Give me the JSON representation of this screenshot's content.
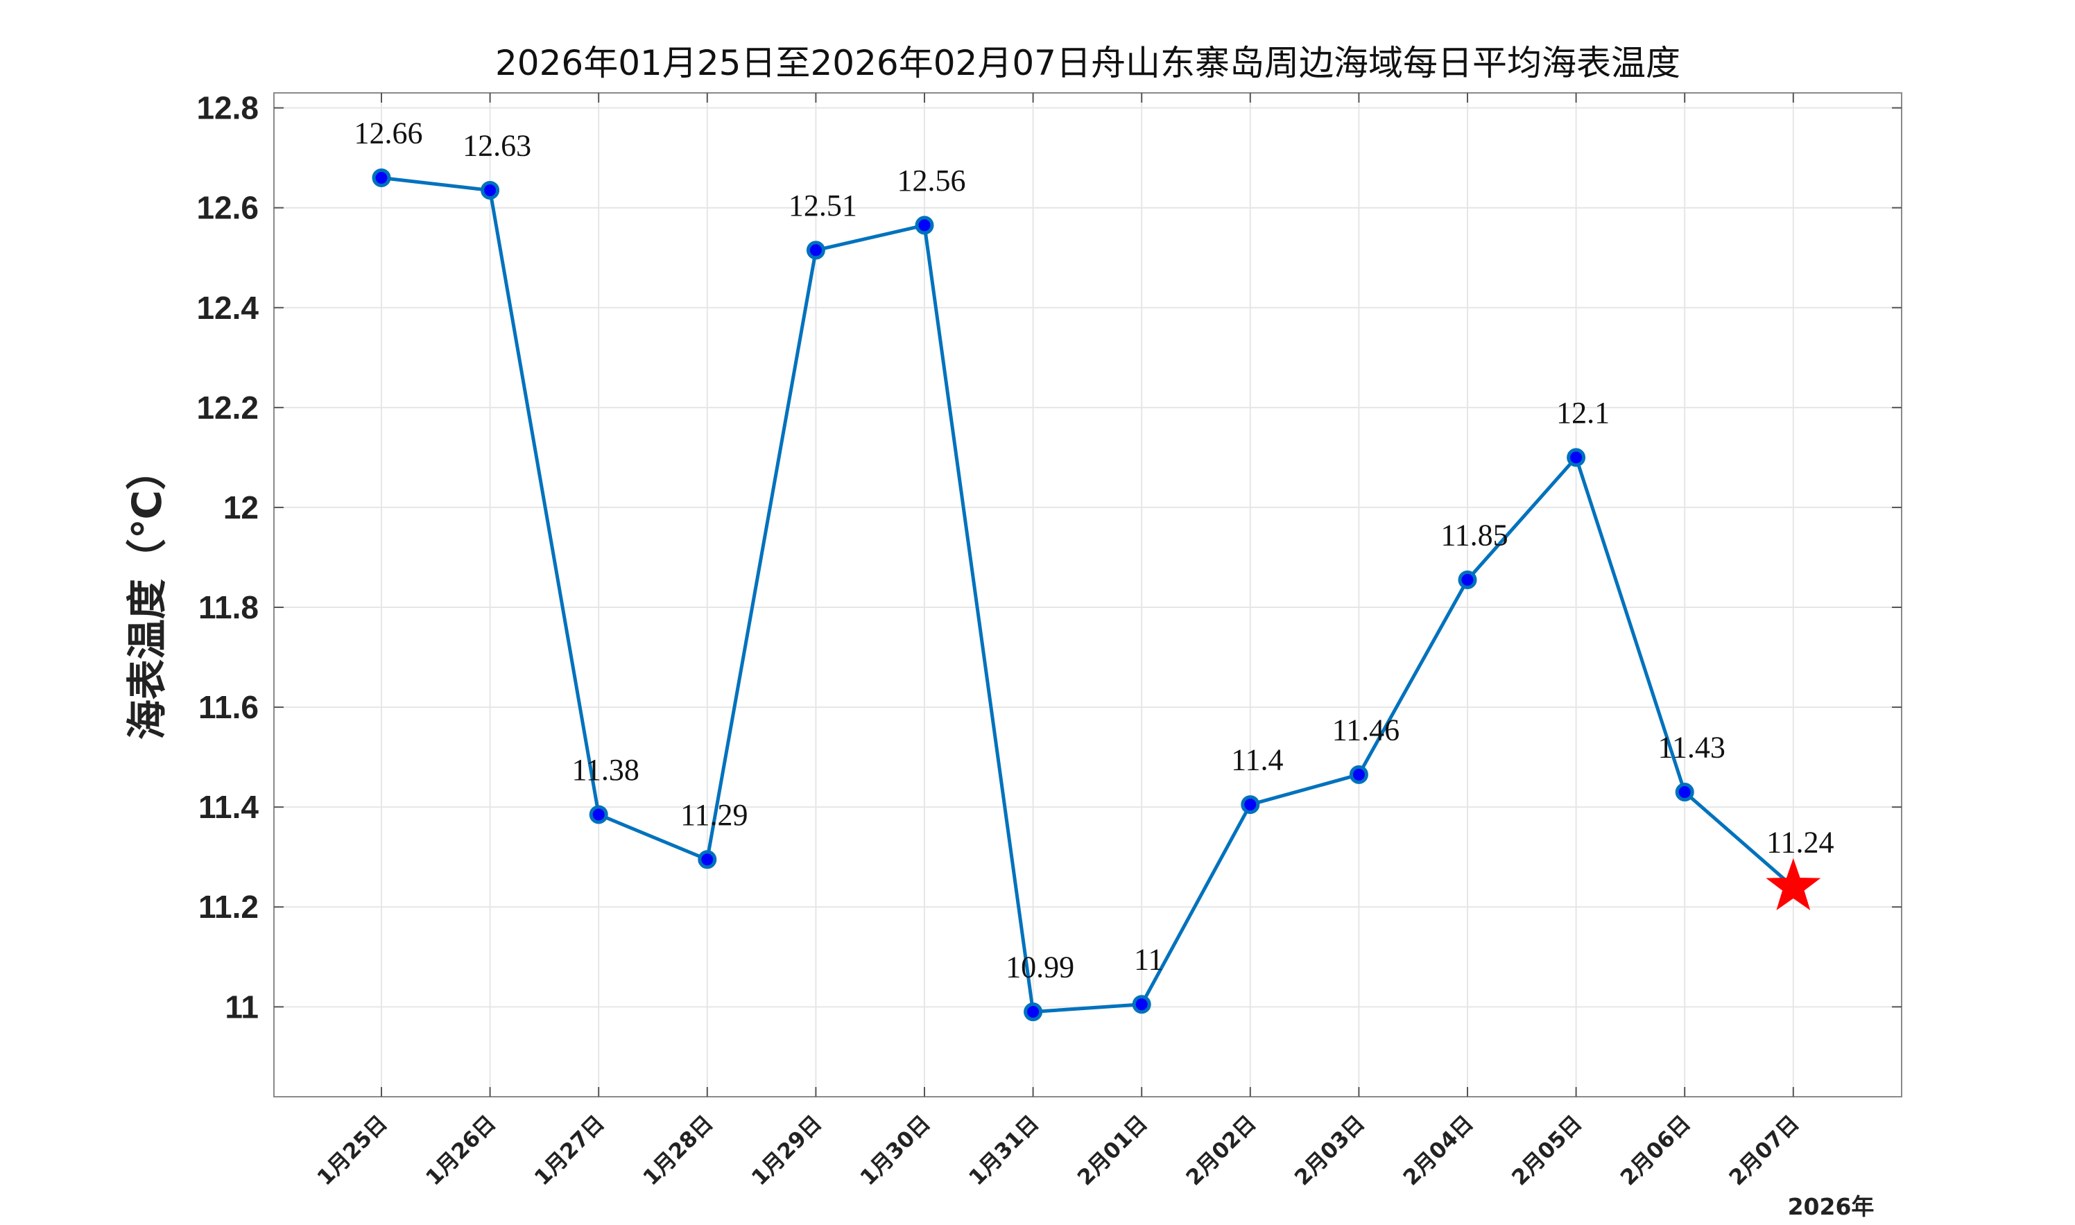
{
  "chart_data": {
    "type": "line",
    "title": "2026年01月25日至2026年02月07日舟山东寨岛周边海域每日平均海表温度",
    "ylabel": "海表温度（℃）",
    "xlabel": "",
    "year_label": "2026年",
    "categories": [
      "1月25日",
      "1月26日",
      "1月27日",
      "1月28日",
      "1月29日",
      "1月30日",
      "1月31日",
      "2月01日",
      "2月02日",
      "2月03日",
      "2月04日",
      "2月05日",
      "2月06日",
      "2月07日"
    ],
    "series": [
      {
        "values": [
          12.66,
          12.635,
          11.385,
          11.295,
          12.515,
          12.565,
          10.99,
          11.005,
          11.405,
          11.465,
          11.855,
          12.1,
          11.43,
          11.24
        ],
        "labels": [
          "12.66",
          "12.63",
          "11.38",
          "11.29",
          "12.51",
          "12.56",
          "10.99",
          "11",
          "11.4",
          "11.46",
          "11.85",
          "12.1",
          "11.43",
          "11.24"
        ],
        "line_color": "#0072BD",
        "marker_color": "#0000FF",
        "last_marker": "star",
        "last_marker_color": "#FF0000"
      }
    ],
    "yticks": [
      "11",
      "11.2",
      "11.4",
      "11.6",
      "11.8",
      "12",
      "12.2",
      "12.4",
      "12.6",
      "12.8"
    ],
    "ylim": [
      10.82,
      12.83
    ],
    "grid": true,
    "legend": "none"
  }
}
